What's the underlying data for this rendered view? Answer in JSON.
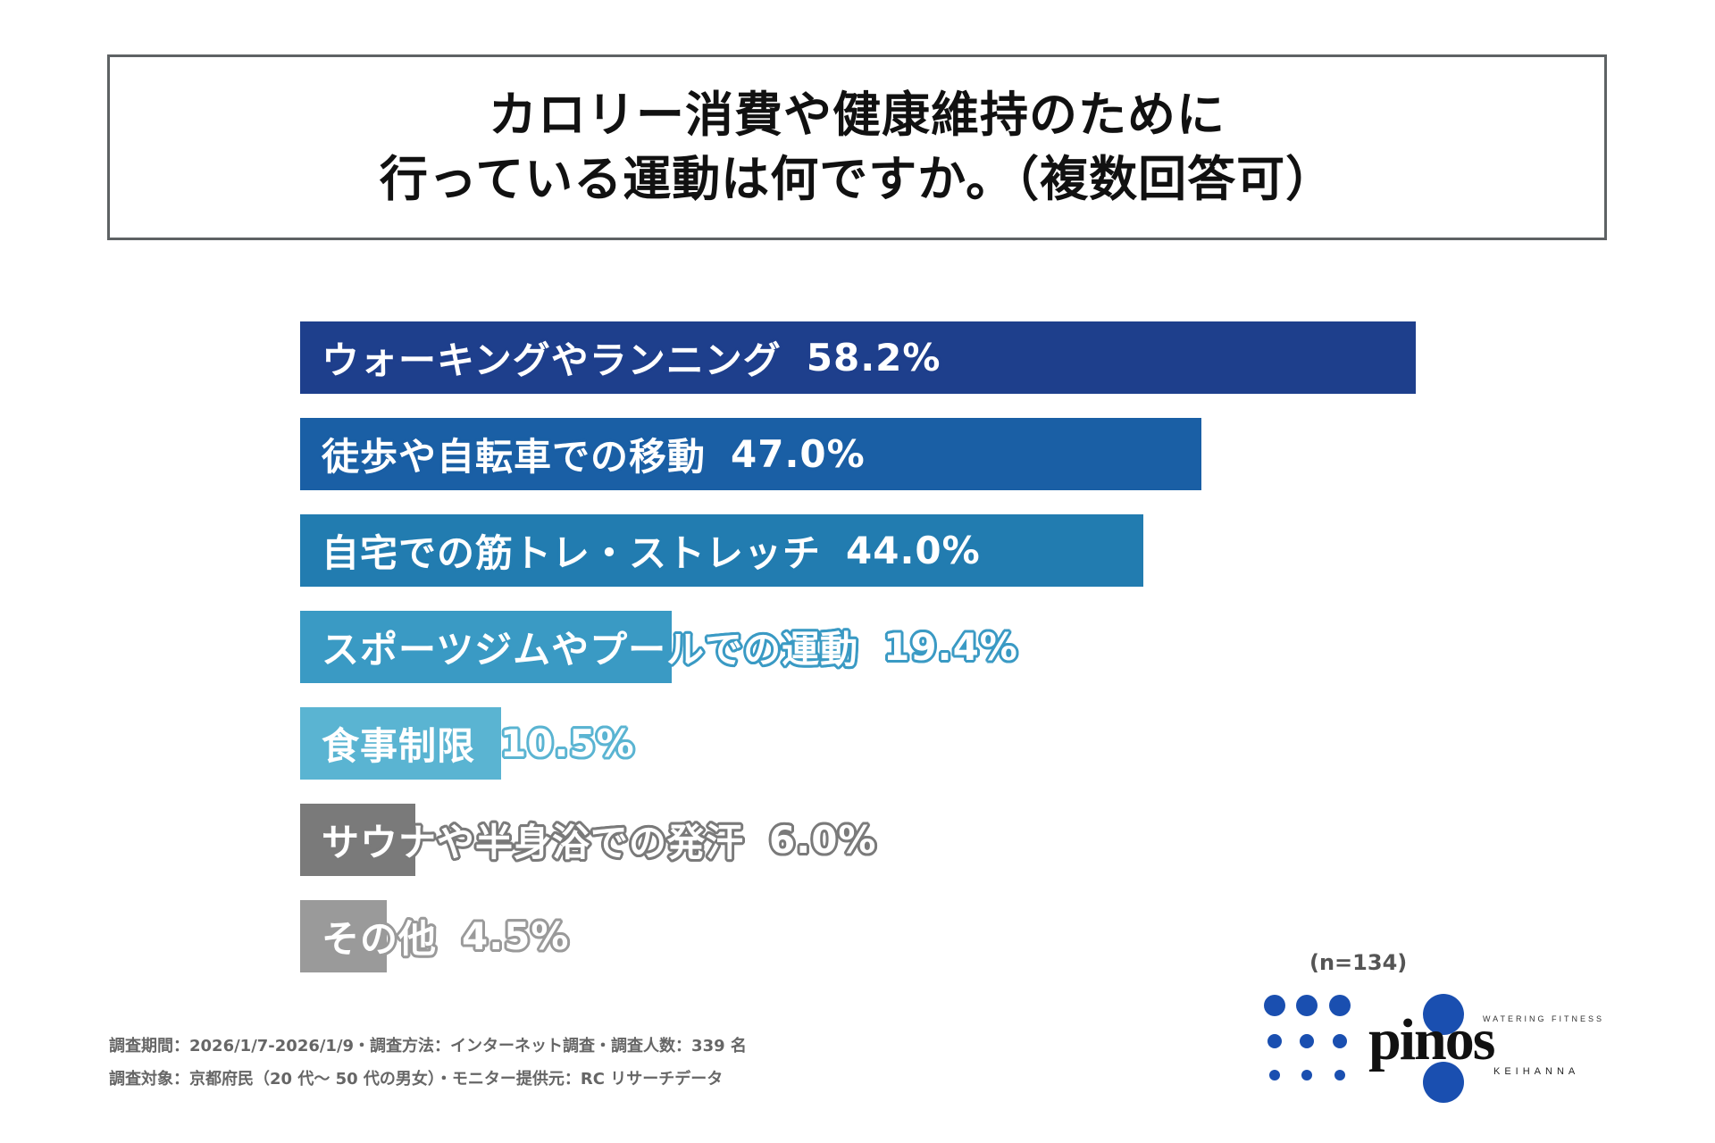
{
  "title": {
    "line1": "カロリー消費や健康維持のために",
    "line2": "行っている運動は何ですか。（複数回答可）"
  },
  "chart_data": {
    "type": "bar",
    "orientation": "horizontal",
    "title": "カロリー消費や健康維持のために行っている運動は何ですか。（複数回答可）",
    "xlabel": "",
    "ylabel": "",
    "unit": "%",
    "xlim": [
      0,
      58.2
    ],
    "grid": false,
    "legend": "none",
    "categories": [
      "ウォーキングやランニング",
      "徒歩や自転車での移動",
      "自宅での筋トレ・ストレッチ",
      "スポーツジムやプールでの運動",
      "食事制限",
      "サウナや半身浴での発汗",
      "その他"
    ],
    "values": [
      58.2,
      47.0,
      44.0,
      19.4,
      10.5,
      6.0,
      4.5
    ],
    "value_labels": [
      "58.2%",
      "47.0%",
      "44.0%",
      "19.4%",
      "10.5%",
      "6.0%",
      "4.5%"
    ],
    "colors": [
      "#1e3f8c",
      "#1a5fa5",
      "#227cb0",
      "#3a9ac4",
      "#5ab4d2",
      "#7a7a7a",
      "#9a9a9a"
    ],
    "sample_size": "(n=134)"
  },
  "footer": {
    "line1": "調査期間：2026/1/7-2026/1/9・調査方法：インターネット調査・調査人数：339 名",
    "line2": "調査対象：京都府民（20 代～ 50 代の男女）・モニター提供元：RC リサーチデータ"
  },
  "logo": {
    "brand": "pinos",
    "tagline": "WATERING FITNESS",
    "sub": "KEIHANNA",
    "color": "#1a4fb0"
  }
}
